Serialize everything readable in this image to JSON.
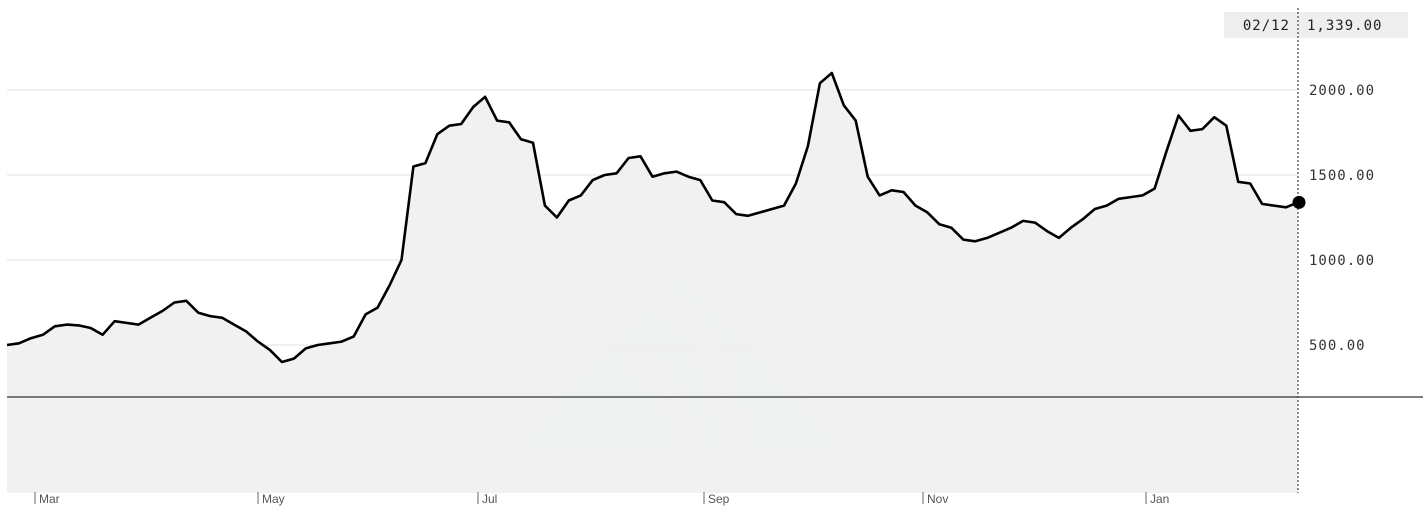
{
  "chart_data": {
    "type": "area",
    "title": "",
    "xlabel": "",
    "ylabel": "",
    "ylim": [
      180,
      2230
    ],
    "y_ticks": [
      "500.00",
      "1000.00",
      "1500.00",
      "2000.00"
    ],
    "y_tick_values": [
      500,
      1000,
      1500,
      2000
    ],
    "x_ticks": [
      "Mar",
      "May",
      "Jul",
      "Sep",
      "Nov",
      "Jan"
    ],
    "grid": true,
    "legend": "none",
    "readout": {
      "date": "02/12",
      "value": "1,339.00"
    },
    "colors": {
      "line": "#000000",
      "fill": "#efefef",
      "grid": "#e2e2e2",
      "marker": "#000000",
      "readout_bg": "#eeeeee"
    },
    "series": [
      {
        "values": [
          500,
          510,
          540,
          560,
          610,
          620,
          615,
          600,
          560,
          640,
          630,
          620,
          660,
          700,
          750,
          760,
          690,
          670,
          660,
          620,
          580,
          520,
          470,
          400,
          420,
          480,
          500,
          510,
          520,
          550,
          680,
          720,
          850,
          1000,
          1550,
          1570,
          1740,
          1790,
          1800,
          1900,
          1960,
          1820,
          1810,
          1710,
          1690,
          1320,
          1250,
          1350,
          1380,
          1470,
          1500,
          1510,
          1600,
          1610,
          1490,
          1510,
          1520,
          1490,
          1470,
          1350,
          1340,
          1270,
          1260,
          1280,
          1300,
          1320,
          1450,
          1670,
          2040,
          2100,
          1910,
          1820,
          1490,
          1380,
          1410,
          1400,
          1320,
          1280,
          1210,
          1190,
          1120,
          1110,
          1130,
          1160,
          1190,
          1230,
          1220,
          1170,
          1130,
          1190,
          1240,
          1300,
          1320,
          1360,
          1370,
          1380,
          1420,
          1640,
          1850,
          1760,
          1770,
          1840,
          1790,
          1460,
          1450,
          1330,
          1320,
          1310,
          1339
        ]
      }
    ]
  }
}
